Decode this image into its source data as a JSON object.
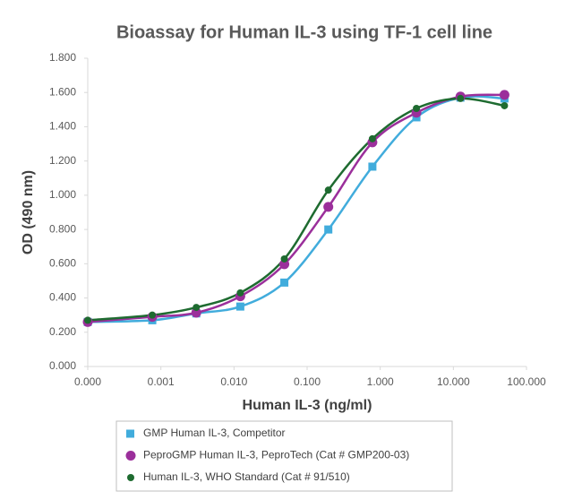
{
  "chart_data": {
    "type": "scatter",
    "title": "Bioassay for Human IL-3 using TF-1 cell line",
    "x_label": "Human IL-3 (ng/ml)",
    "y_label": "OD (490 nm)",
    "x_scale": "log",
    "x": [
      0.0001,
      0.000763,
      0.00305,
      0.0122,
      0.0488,
      0.195,
      0.781,
      3.125,
      12.5,
      50
    ],
    "series": [
      {
        "name": "GMP Human IL-3, Competitor",
        "color": "#41acdc",
        "marker": "square",
        "values": [
          0.26,
          0.27,
          0.31,
          0.35,
          0.49,
          0.8,
          1.167,
          1.455,
          1.57,
          1.565
        ]
      },
      {
        "name": "PeproGMP Human IL-3, PeproTech (Cat # GMP200-03)",
        "color": "#9b2f9b",
        "marker": "circle",
        "values": [
          0.26,
          0.29,
          0.314,
          0.41,
          0.597,
          0.932,
          1.309,
          1.482,
          1.576,
          1.586
        ]
      },
      {
        "name": "Human IL-3, WHO Standard (Cat # 91/510)",
        "color": "#1e6b30",
        "marker": "dot",
        "values": [
          0.27,
          0.3,
          0.345,
          0.43,
          0.628,
          1.03,
          1.33,
          1.507,
          1.565,
          1.523
        ]
      }
    ],
    "xlim": [
      0.0001,
      100
    ],
    "xticks": [
      {
        "value": 0.0001,
        "label": "0.000"
      },
      {
        "value": 0.001,
        "label": "0.001"
      },
      {
        "value": 0.01,
        "label": "0.010"
      },
      {
        "value": 0.1,
        "label": "0.100"
      },
      {
        "value": 1,
        "label": "1.000"
      },
      {
        "value": 10,
        "label": "10.000"
      },
      {
        "value": 100,
        "label": "100.000"
      }
    ],
    "ylim": [
      0,
      1.8
    ],
    "yticks": [
      {
        "value": 0,
        "label": "0.000"
      },
      {
        "value": 0.2,
        "label": "0.200"
      },
      {
        "value": 0.4,
        "label": "0.400"
      },
      {
        "value": 0.6,
        "label": "0.600"
      },
      {
        "value": 0.8,
        "label": "0.800"
      },
      {
        "value": 1,
        "label": "1.000"
      },
      {
        "value": 1.2,
        "label": "1.200"
      },
      {
        "value": 1.4,
        "label": "1.400"
      },
      {
        "value": 1.6,
        "label": "1.600"
      },
      {
        "value": 1.8,
        "label": "1.800"
      }
    ],
    "legend": "bottom"
  }
}
